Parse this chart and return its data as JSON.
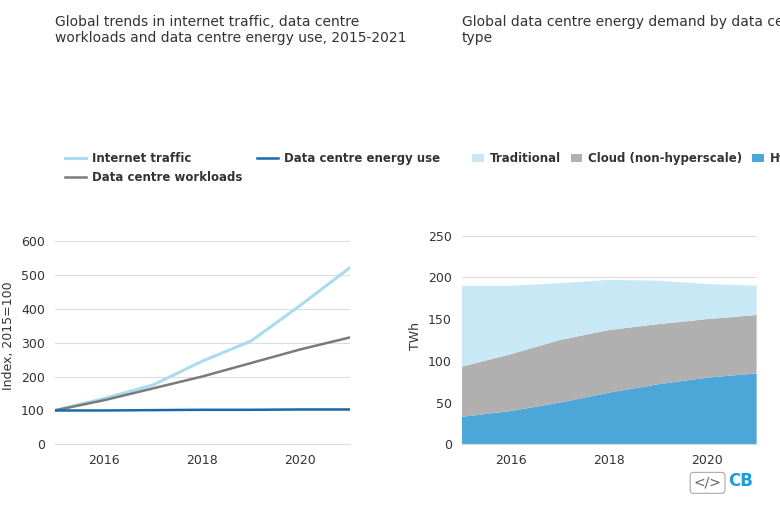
{
  "left_title": "Global trends in internet traffic, data centre\nworkloads and data centre energy use, 2015-2021",
  "right_title": "Global data centre energy demand by data centre\ntype",
  "left_ylabel": "Index, 2015=100",
  "right_ylabel": "TWh",
  "years": [
    2015,
    2016,
    2017,
    2018,
    2019,
    2020,
    2021
  ],
  "internet_traffic": [
    100,
    135,
    175,
    245,
    305,
    410,
    520
  ],
  "dc_workloads": [
    100,
    130,
    165,
    200,
    240,
    280,
    315
  ],
  "dc_energy": [
    100,
    100,
    101,
    102,
    102,
    103,
    103
  ],
  "internet_traffic_color": "#aadcf0",
  "dc_workloads_color": "#7a7a7a",
  "dc_energy_color": "#1a6aab",
  "left_ylim": [
    0,
    640
  ],
  "left_yticks": [
    0,
    100,
    200,
    300,
    400,
    500,
    600
  ],
  "right_ylim": [
    0,
    260
  ],
  "right_yticks": [
    0,
    50,
    100,
    150,
    200,
    250
  ],
  "stack_years": [
    2015,
    2016,
    2017,
    2018,
    2019,
    2020,
    2021
  ],
  "hyperscale": [
    33,
    40,
    50,
    62,
    72,
    80,
    85
  ],
  "cloud": [
    60,
    68,
    75,
    75,
    72,
    70,
    70
  ],
  "traditional": [
    97,
    82,
    68,
    60,
    52,
    42,
    35
  ],
  "hyperscale_color": "#4da6d8",
  "cloud_color": "#b0b0b0",
  "traditional_color": "#c8e8f5",
  "bg_color": "#ffffff",
  "grid_color": "#dddddd",
  "font_color": "#333333",
  "title_fontsize": 10,
  "legend_fontsize": 8.5,
  "tick_fontsize": 9,
  "ylabel_fontsize": 9
}
